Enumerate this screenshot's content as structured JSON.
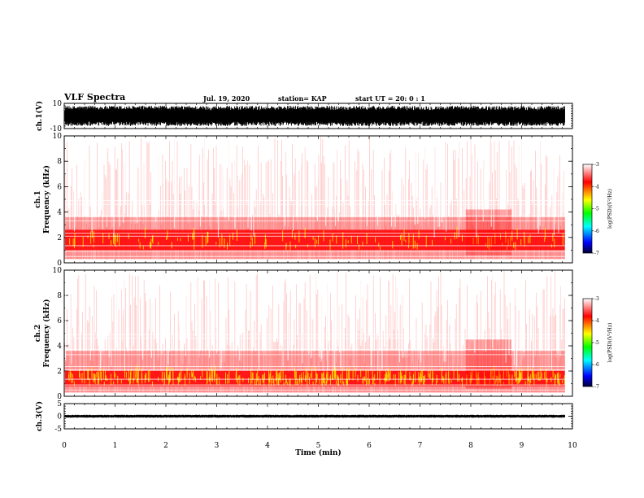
{
  "header": {
    "title": "VLF Spectra",
    "date": "Jul. 19, 2020",
    "station": "station= KAP",
    "start": "start UT =  20: 0 : 1"
  },
  "colors": {
    "spectrogram_high": "#ff0000",
    "spectrogram_mid": "#ffff00",
    "trace": "#000000"
  },
  "chart_data": [
    {
      "type": "line",
      "name": "ch1-waveform",
      "ylabel": "ch.1(V)",
      "ylim": [
        -10,
        10
      ],
      "yticks": [
        "10",
        "-10"
      ],
      "xlim": [
        0,
        10
      ],
      "description_level": "dense black waveform filling roughly -8 to +8 V",
      "envelope": {
        "upper": 8,
        "lower": -8
      }
    },
    {
      "type": "heatmap",
      "name": "ch1-spectrogram",
      "ylabel": "ch.1\nFrequency (kHz)",
      "ylim": [
        0,
        10
      ],
      "yticks": [
        "0",
        "2",
        "4",
        "6",
        "8",
        "10"
      ],
      "xlim": [
        0,
        9.85
      ],
      "strong_band_khz": [
        1.0,
        2.6
      ],
      "colorbar": {
        "label": "log(PSD)(V²/Hz)",
        "range": [
          -7,
          -3
        ],
        "ticks": [
          "-3",
          "-4",
          "-5",
          "-6",
          "-7"
        ]
      }
    },
    {
      "type": "heatmap",
      "name": "ch2-spectrogram",
      "ylabel": "ch.2\nFrequency (kHz)",
      "ylim": [
        0,
        10
      ],
      "yticks": [
        "0",
        "2",
        "4",
        "6",
        "8",
        "10"
      ],
      "xlim": [
        0,
        9.85
      ],
      "strong_band_khz": [
        0.8,
        2.0
      ],
      "colorbar": {
        "label": "log(PSD)(V²/Hz)",
        "range": [
          -7,
          -3
        ],
        "ticks": [
          "-3",
          "-4",
          "-5",
          "-6",
          "-7"
        ]
      }
    },
    {
      "type": "line",
      "name": "ch3-waveform",
      "ylabel": "ch.3(V)",
      "ylim": [
        -5,
        5
      ],
      "yticks": [
        "5",
        "0",
        "-5"
      ],
      "xlim": [
        0,
        10
      ],
      "envelope": {
        "upper": 0.6,
        "lower": -0.6
      }
    }
  ],
  "xaxis": {
    "label": "Time (min)",
    "ticks": [
      "0",
      "1",
      "2",
      "3",
      "4",
      "5",
      "6",
      "7",
      "8",
      "9",
      "10"
    ]
  }
}
